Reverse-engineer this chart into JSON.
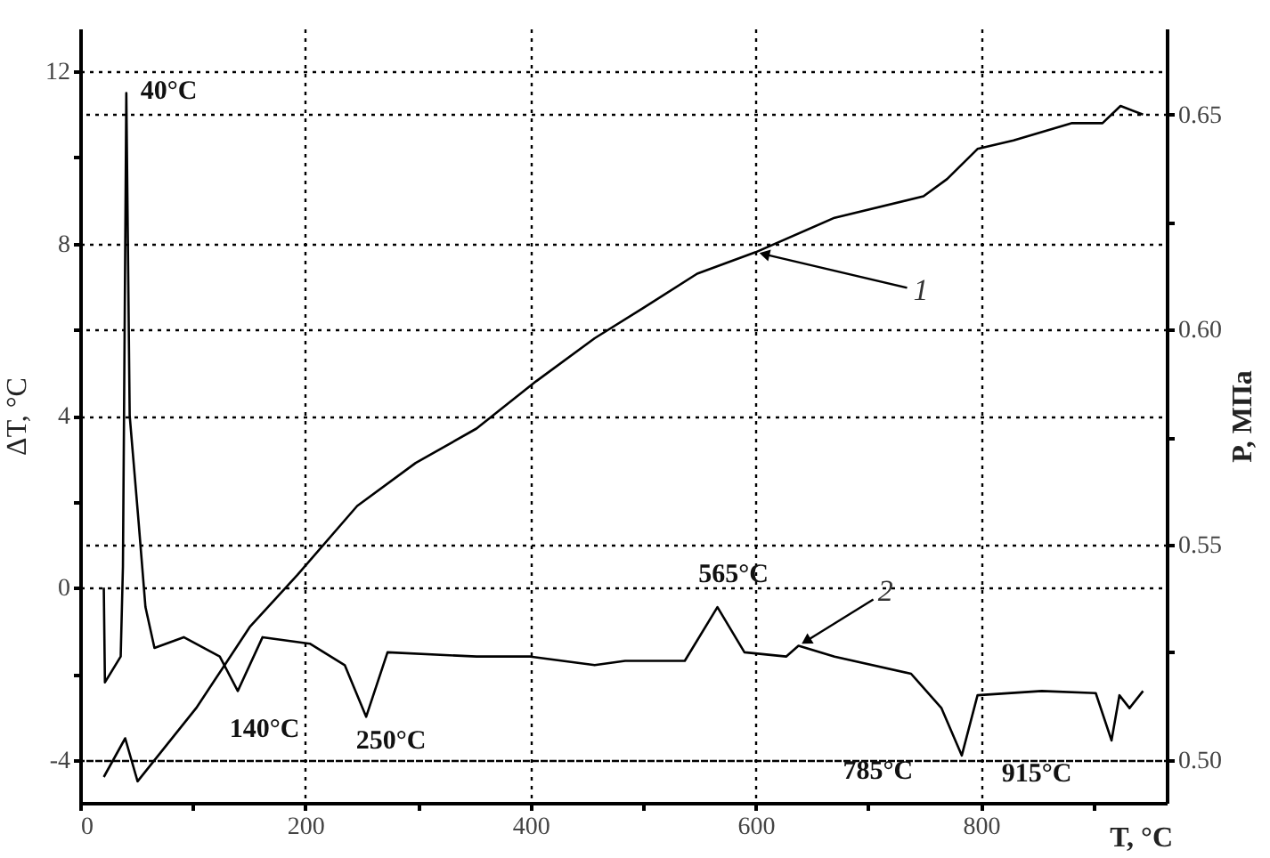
{
  "chart_data": {
    "type": "line",
    "xlabel": "T,  °C",
    "ylabel": "ΔT, °C",
    "y2label": "P, МПа",
    "xlim": [
      0,
      965
    ],
    "ylim": [
      -5,
      13
    ],
    "y2lim": [
      0.49,
      0.67
    ],
    "xticks": [
      0,
      {
        "value": 100,
        "label": null
      },
      200,
      {
        "value": 300,
        "label": null
      },
      400,
      {
        "value": 500,
        "label": null
      },
      600,
      {
        "value": 700,
        "label": null
      },
      800,
      {
        "value": 900,
        "label": null
      }
    ],
    "yticks": [
      -4,
      {
        "value": -2,
        "label": null
      },
      0,
      {
        "value": 2,
        "label": null
      },
      4,
      {
        "value": 6,
        "label": null
      },
      8,
      {
        "value": 10,
        "label": null
      },
      12
    ],
    "y2ticks": [
      {
        "value": 0.5,
        "label": "0.50"
      },
      {
        "value": 0.525,
        "label": null
      },
      0.55,
      {
        "value": 0.575,
        "label": null
      },
      {
        "value": 0.6,
        "label": "0.60"
      },
      {
        "value": 0.625,
        "label": null
      },
      0.65
    ],
    "grid": true,
    "series": [
      {
        "name": "1",
        "color": "#000000",
        "axis": "y2",
        "x": [
          21,
          40,
          51,
          103,
          151,
          193,
          246,
          298,
          352,
          405,
          457,
          500,
          548,
          600,
          670,
          749,
          770,
          797,
          829,
          881,
          908,
          924,
          944
        ],
        "values": [
          0.496,
          0.505,
          0.495,
          0.512,
          0.531,
          0.543,
          0.559,
          0.569,
          0.577,
          0.588,
          0.598,
          0.605,
          0.613,
          0.618,
          0.626,
          0.631,
          0.635,
          0.642,
          0.644,
          0.648,
          0.648,
          0.652,
          0.65
        ]
      },
      {
        "name": "2",
        "color": "#000000",
        "x": [
          21,
          22,
          36,
          38,
          41,
          44,
          52,
          58,
          66,
          92,
          124,
          140,
          162,
          204,
          235,
          254,
          273,
          352,
          400,
          457,
          484,
          537,
          566,
          590,
          627,
          638,
          670,
          738,
          765,
          783,
          797,
          854,
          902,
          916,
          923,
          932,
          944
        ],
        "values": [
          0,
          -2.2,
          -1.6,
          0.5,
          11.5,
          4,
          1.5,
          -0.45,
          -1.4,
          -1.15,
          -1.6,
          -2.4,
          -1.15,
          -1.3,
          -1.8,
          -3.0,
          -1.5,
          -1.6,
          -1.6,
          -1.8,
          -1.7,
          -1.7,
          -0.45,
          -1.5,
          -1.6,
          -1.35,
          -1.6,
          -2.0,
          -2.8,
          -3.9,
          -2.5,
          -2.4,
          -2.45,
          -3.55,
          -2.5,
          -2.8,
          -2.4
        ]
      }
    ],
    "annotations": [
      {
        "text": "40°C",
        "x": 41,
        "y": 11.5
      },
      {
        "text": "140°C",
        "x": 140,
        "y": -2.4
      },
      {
        "text": "250°C",
        "x": 254,
        "y": -3.0
      },
      {
        "text": "565°C",
        "x": 566,
        "y": -0.45
      },
      {
        "text": "785°C",
        "x": 783,
        "y": -3.9
      },
      {
        "text": "915°C",
        "x": 916,
        "y": -3.55
      }
    ]
  }
}
